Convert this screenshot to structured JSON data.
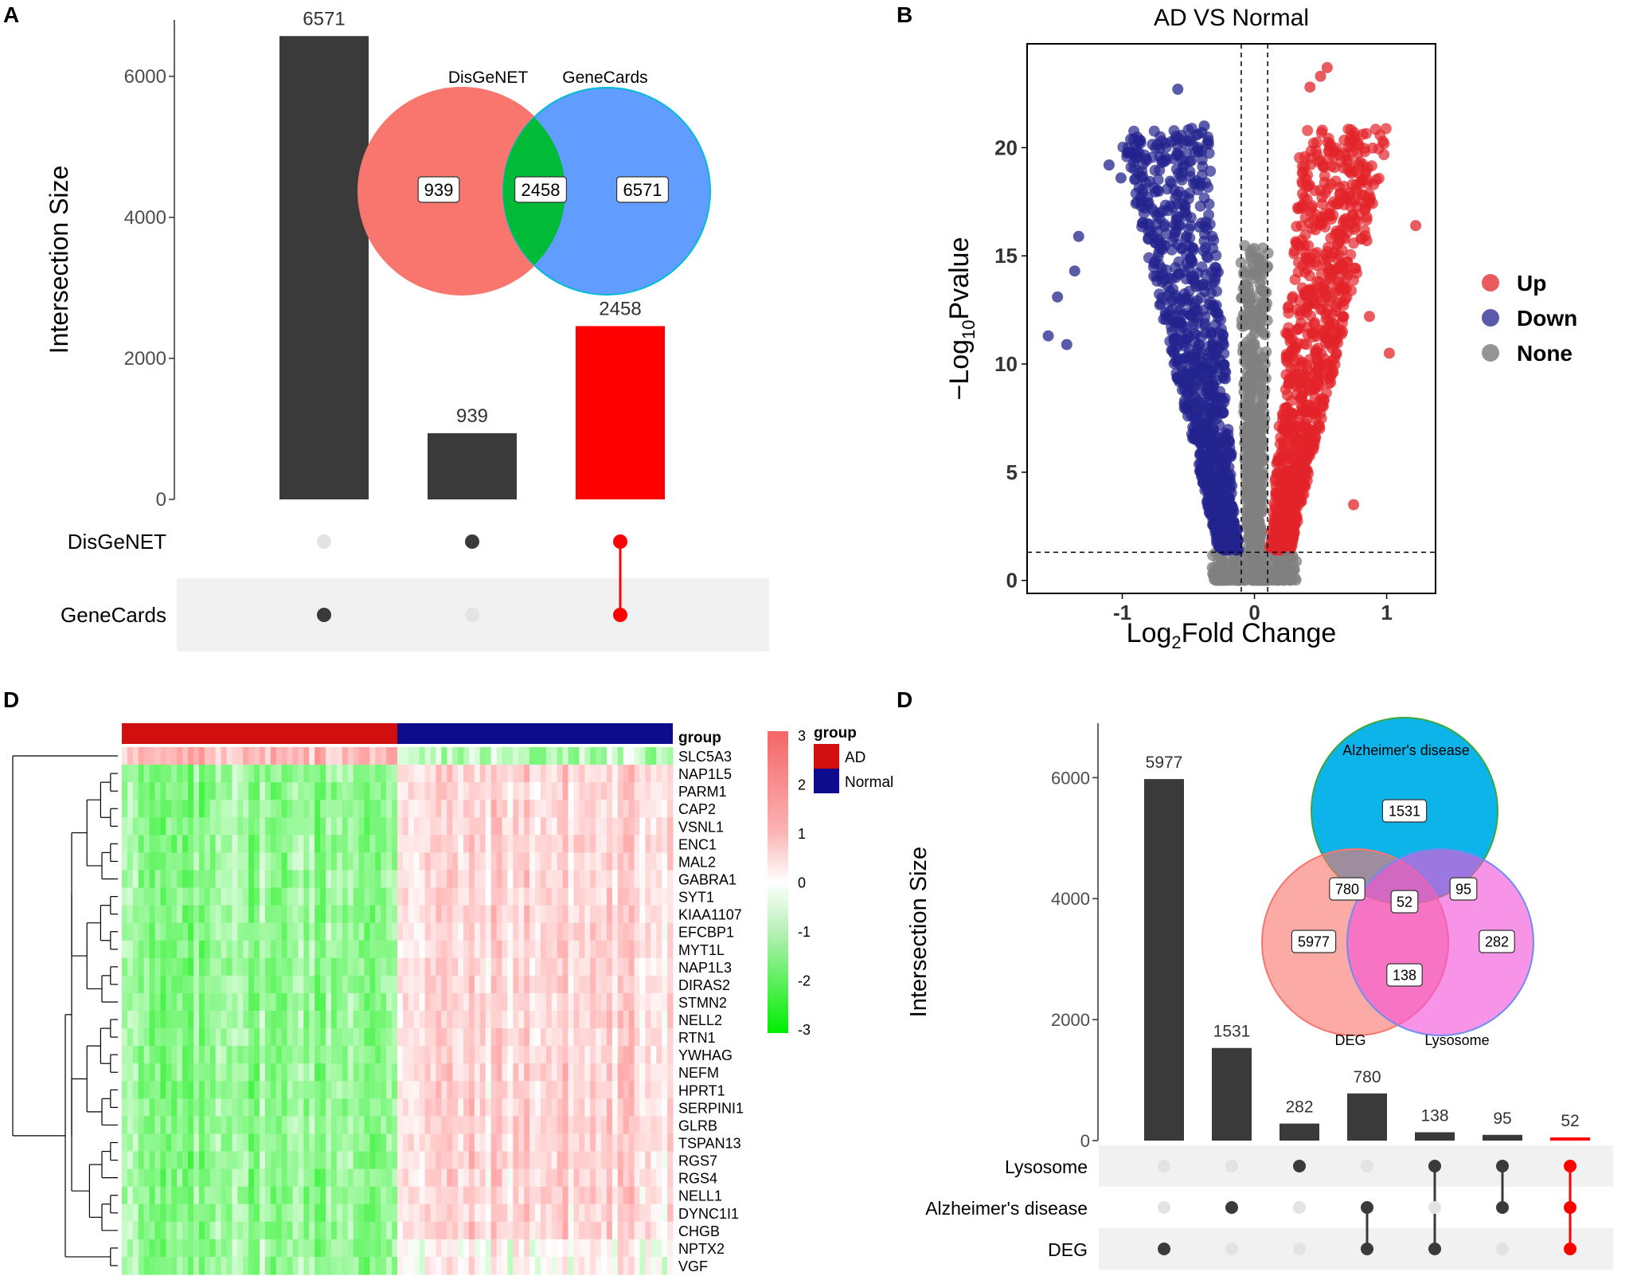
{
  "panel_labels": [
    "A",
    "B",
    "D",
    "D"
  ],
  "chart_data": [
    {
      "panel": "A",
      "type": "bar",
      "subtype": "upset",
      "ylabel": "Intersection Size",
      "ylim": [
        0,
        6800
      ],
      "yticks": [
        0,
        2000,
        4000,
        6000
      ],
      "sets": [
        "DisGeNET",
        "GeneCards"
      ],
      "bars": [
        {
          "value": 6571,
          "label": "6571",
          "members": [
            "GeneCards"
          ],
          "highlight": false
        },
        {
          "value": 939,
          "label": "939",
          "members": [
            "DisGeNET"
          ],
          "highlight": false
        },
        {
          "value": 2458,
          "label": "2458",
          "members": [
            "DisGeNET",
            "GeneCards"
          ],
          "highlight": true
        }
      ],
      "venn": {
        "set_labels": [
          "DisGeNET",
          "GeneCards"
        ],
        "regions": [
          {
            "name": "DisGeNET only",
            "label": "939"
          },
          {
            "name": "both",
            "label": "2458"
          },
          {
            "name": "GeneCards only",
            "label": "6571"
          }
        ]
      },
      "colors": {
        "bar": "#3a3a3a",
        "highlight": "#ff0000",
        "venn_left": "#f8766d",
        "venn_mid": "#00ba38",
        "venn_right": "#619cff"
      }
    },
    {
      "panel": "B",
      "type": "scatter",
      "subtype": "volcano",
      "title": "AD VS Normal",
      "xlabel_main": "Log",
      "xlabel_sub": "2",
      "xlabel_rest": "Fold Change",
      "ylabel_main": "−Log",
      "ylabel_sub": "10",
      "ylabel_rest": "Pvalue",
      "xlim": [
        -1.72,
        1.37
      ],
      "ylim": [
        -0.6,
        24.8
      ],
      "xticks": [
        "-1",
        "0",
        "1"
      ],
      "yticks": [
        "0",
        "5",
        "10",
        "15",
        "20"
      ],
      "fc_cutoff": [
        -0.1,
        0.1
      ],
      "p_cutoff": 1.3,
      "legend": [
        {
          "label": "Up",
          "color": "#e2242a"
        },
        {
          "label": "Down",
          "color": "#23238e"
        },
        {
          "label": "None",
          "color": "#707070"
        }
      ],
      "sample_points": {
        "up": [
          [
            1.22,
            16.4
          ],
          [
            0.55,
            23.7
          ],
          [
            0.5,
            23.3
          ],
          [
            0.42,
            22.8
          ],
          [
            0.78,
            20.2
          ],
          [
            1.02,
            10.5
          ],
          [
            0.87,
            12.2
          ],
          [
            0.85,
            15.7
          ],
          [
            0.75,
            3.5
          ]
        ],
        "down": [
          [
            -0.58,
            22.7
          ],
          [
            -1.56,
            11.3
          ],
          [
            -1.49,
            13.1
          ],
          [
            -1.42,
            10.9
          ],
          [
            -1.36,
            14.3
          ],
          [
            -1.33,
            15.9
          ],
          [
            -1.01,
            18.6
          ],
          [
            -0.38,
            21.0
          ],
          [
            -1.1,
            19.2
          ]
        ],
        "none": [
          [
            0.0,
            1.0
          ],
          [
            -0.05,
            6.0
          ],
          [
            0.05,
            8.0
          ],
          [
            0.25,
            1.1
          ],
          [
            -0.25,
            0.9
          ],
          [
            0.0,
            11.4
          ],
          [
            0.02,
            14.9
          ]
        ]
      }
    },
    {
      "panel": "D",
      "type": "heatmap",
      "legend_title": "group",
      "groups": [
        {
          "label": "AD",
          "color": "#d20f0f"
        },
        {
          "label": "Normal",
          "color": "#0c0c8c"
        }
      ],
      "scale_ticks": [
        "3",
        "2",
        "1",
        "0",
        "-1",
        "-2",
        "-3"
      ],
      "scale_range": [
        -3,
        3
      ],
      "genes": [
        "SLC5A3",
        "NAP1L5",
        "PARM1",
        "CAP2",
        "VSNL1",
        "ENC1",
        "MAL2",
        "GABRA1",
        "SYT1",
        "KIAA1107",
        "EFCBP1",
        "MYT1L",
        "NAP1L3",
        "DIRAS2",
        "STMN2",
        "NELL2",
        "RTN1",
        "YWHAG",
        "NEFM",
        "HPRT1",
        "SERPINI1",
        "GLRB",
        "TSPAN13",
        "RGS7",
        "RGS4",
        "NELL1",
        "DYNC1I1",
        "CHGB",
        "NPTX2",
        "VGF"
      ],
      "n_samples": {
        "AD": 50,
        "Normal": 50
      },
      "pattern": "SLC5A3 higher in AD; remaining genes lower in AD and higher in Normal"
    },
    {
      "panel": "D",
      "type": "bar",
      "subtype": "upset",
      "ylabel": "Intersection Size",
      "ylim": [
        0,
        6900
      ],
      "yticks": [
        0,
        2000,
        4000,
        6000
      ],
      "sets": [
        "Lysosome",
        "Alzheimer's disease",
        "DEG"
      ],
      "bars": [
        {
          "value": 5977,
          "label": "5977",
          "members": [
            "DEG"
          ],
          "highlight": false
        },
        {
          "value": 1531,
          "label": "1531",
          "members": [
            "Alzheimer's disease"
          ],
          "highlight": false
        },
        {
          "value": 282,
          "label": "282",
          "members": [
            "Lysosome"
          ],
          "highlight": false
        },
        {
          "value": 780,
          "label": "780",
          "members": [
            "Alzheimer's disease",
            "DEG"
          ],
          "highlight": false
        },
        {
          "value": 138,
          "label": "138",
          "members": [
            "Lysosome",
            "DEG"
          ],
          "highlight": false
        },
        {
          "value": 95,
          "label": "95",
          "members": [
            "Lysosome",
            "Alzheimer's disease"
          ],
          "highlight": false
        },
        {
          "value": 52,
          "label": "52",
          "members": [
            "Lysosome",
            "Alzheimer's disease",
            "DEG"
          ],
          "highlight": true
        }
      ],
      "venn": {
        "set_labels": [
          "Alzheimer's disease",
          "DEG",
          "Lysosome"
        ],
        "regions": [
          {
            "name": "AD only",
            "label": "1531"
          },
          {
            "name": "AD & DEG",
            "label": "780"
          },
          {
            "name": "all three",
            "label": "52"
          },
          {
            "name": "AD & Lysosome",
            "label": "95"
          },
          {
            "name": "DEG only",
            "label": "5977"
          },
          {
            "name": "Lysosome only",
            "label": "282"
          },
          {
            "name": "DEG & Lysosome",
            "label": "138"
          }
        ]
      },
      "colors": {
        "bar": "#3a3a3a",
        "highlight": "#ff0000",
        "venn_top": "#00b0e8",
        "venn_left": "#f8766d",
        "venn_right": "#f452d8"
      }
    }
  ]
}
